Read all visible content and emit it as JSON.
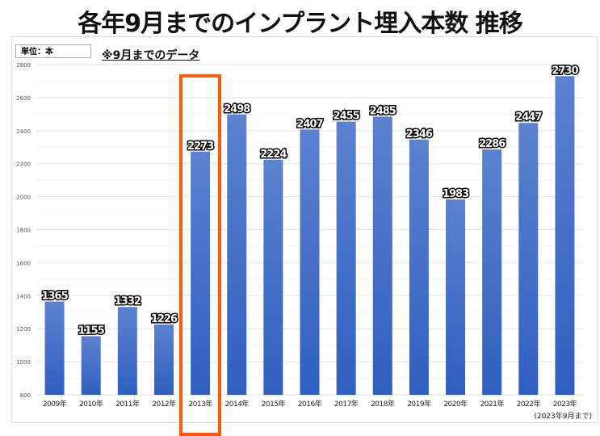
{
  "title": "各年9月までのインプラント埋入本数 推移",
  "unit_label": "単位：本",
  "note": "※9月までのデータ",
  "footnote": "(2023年9月まで)",
  "highlight_category": "2013年",
  "colors": {
    "bar": "#4a72c8",
    "highlight": "#ff5a0a"
  },
  "chart_data": {
    "type": "bar",
    "title": "各年9月までのインプラント埋入本数 推移",
    "categories": [
      "2009年",
      "2010年",
      "2011年",
      "2012年",
      "2013年",
      "2014年",
      "2015年",
      "2016年",
      "2017年",
      "2018年",
      "2019年",
      "2020年",
      "2021年",
      "2022年",
      "2023年"
    ],
    "values": [
      1365,
      1155,
      1332,
      1226,
      2273,
      2498,
      2224,
      2407,
      2455,
      2485,
      2346,
      1983,
      2286,
      2447,
      2730
    ],
    "ylim": [
      800,
      2800
    ],
    "yticks": [
      800,
      1000,
      1200,
      1400,
      1600,
      1800,
      2000,
      2200,
      2400,
      2600,
      2800
    ],
    "xlabel": "",
    "ylabel": "本",
    "grid": true
  }
}
